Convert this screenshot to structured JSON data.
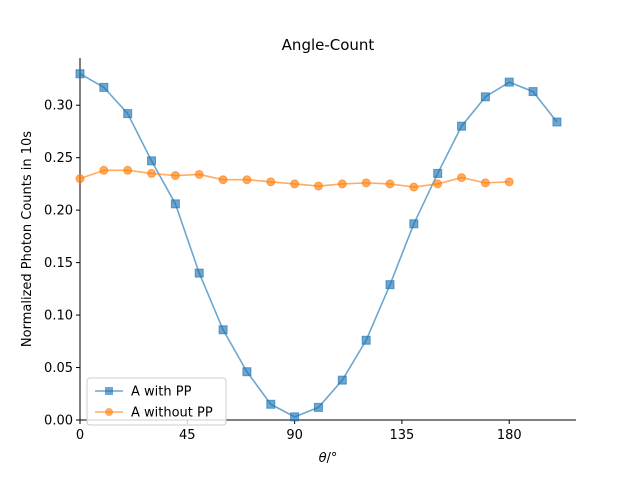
{
  "chart_data": {
    "type": "line",
    "title": "Angle-Count",
    "xlabel_symbol": "θ",
    "xlabel_unit": "/°",
    "ylabel": "Normalized Photon Counts in 10s",
    "xlim": [
      0,
      208
    ],
    "ylim": [
      0,
      0.345
    ],
    "xticks": [
      0,
      45,
      90,
      135,
      180
    ],
    "yticks": [
      0.0,
      0.05,
      0.1,
      0.15,
      0.2,
      0.25,
      0.3
    ],
    "ytick_labels": [
      "0.00",
      "0.05",
      "0.10",
      "0.15",
      "0.20",
      "0.25",
      "0.30"
    ],
    "grid": false,
    "legend_position": "lower-left",
    "series": [
      {
        "name": "A with PP",
        "marker": "square",
        "color": "#1f77b4",
        "x": [
          0,
          10,
          20,
          30,
          40,
          50,
          60,
          70,
          80,
          90,
          100,
          110,
          120,
          130,
          140,
          150,
          160,
          170,
          180,
          190,
          200
        ],
        "y": [
          0.33,
          0.317,
          0.292,
          0.247,
          0.206,
          0.14,
          0.086,
          0.046,
          0.015,
          0.003,
          0.012,
          0.038,
          0.076,
          0.129,
          0.187,
          0.235,
          0.28,
          0.308,
          0.322,
          0.313,
          0.284
        ]
      },
      {
        "name": "A without PP",
        "marker": "circle",
        "color": "#ff7f0e",
        "x": [
          0,
          10,
          20,
          30,
          40,
          50,
          60,
          70,
          80,
          90,
          100,
          110,
          120,
          130,
          140,
          150,
          160,
          170,
          180
        ],
        "y": [
          0.23,
          0.238,
          0.238,
          0.235,
          0.233,
          0.234,
          0.229,
          0.229,
          0.227,
          0.225,
          0.223,
          0.225,
          0.226,
          0.225,
          0.222,
          0.225,
          0.231,
          0.226,
          0.227
        ]
      }
    ]
  }
}
